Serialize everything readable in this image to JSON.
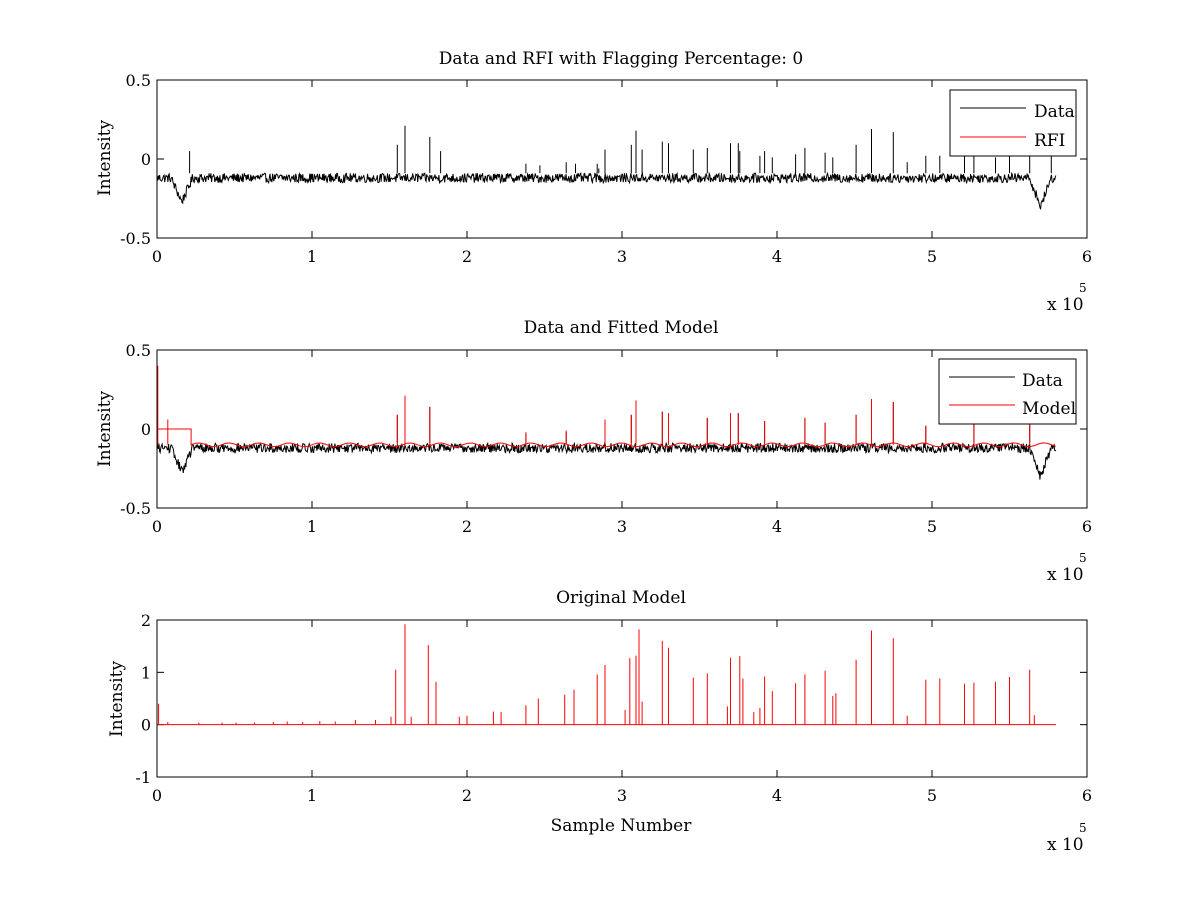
{
  "figure": {
    "background": "#ffffff",
    "axes_color": "#000000"
  },
  "chart_data": [
    {
      "type": "line",
      "title": "Data and RFI with Flagging Percentage: 0",
      "xlabel": "",
      "ylabel": "Intensity",
      "xlim": [
        0,
        600000
      ],
      "ylim": [
        -0.5,
        0.5
      ],
      "xticks": [
        "0",
        "1",
        "2",
        "3",
        "4",
        "5",
        "6"
      ],
      "yticks": [
        "-0.5",
        "0",
        "0.5"
      ],
      "x_multiplier": {
        "base": "x 10",
        "power": "5"
      },
      "grid": false,
      "legend": {
        "placement": "top-right",
        "entries": [
          "Data",
          "RFI"
        ]
      },
      "series": [
        {
          "name": "Data",
          "color": "#000000",
          "baseline": -0.12,
          "noise_amplitude": 0.03,
          "dips": [
            {
              "x": 16000,
              "y": -0.27
            },
            {
              "x": 570000,
              "y": -0.3
            }
          ],
          "spikes": [
            {
              "x": 21000,
              "y": 0.05
            },
            {
              "x": 155000,
              "y": 0.09
            },
            {
              "x": 160000,
              "y": 0.21
            },
            {
              "x": 176000,
              "y": 0.14
            },
            {
              "x": 183000,
              "y": 0.05
            },
            {
              "x": 238000,
              "y": -0.03
            },
            {
              "x": 247000,
              "y": -0.04
            },
            {
              "x": 264000,
              "y": -0.02
            },
            {
              "x": 270000,
              "y": -0.03
            },
            {
              "x": 284000,
              "y": -0.03
            },
            {
              "x": 285000,
              "y": -0.06
            },
            {
              "x": 289000,
              "y": 0.06
            },
            {
              "x": 306000,
              "y": 0.09
            },
            {
              "x": 309000,
              "y": 0.18
            },
            {
              "x": 313000,
              "y": 0.06
            },
            {
              "x": 326000,
              "y": 0.11
            },
            {
              "x": 330000,
              "y": 0.1
            },
            {
              "x": 346000,
              "y": 0.06
            },
            {
              "x": 355000,
              "y": 0.07
            },
            {
              "x": 370000,
              "y": 0.1
            },
            {
              "x": 375000,
              "y": 0.1
            },
            {
              "x": 376000,
              "y": 0.05
            },
            {
              "x": 389000,
              "y": 0.02
            },
            {
              "x": 392000,
              "y": 0.05
            },
            {
              "x": 397000,
              "y": 0.01
            },
            {
              "x": 412000,
              "y": 0.03
            },
            {
              "x": 418000,
              "y": 0.07
            },
            {
              "x": 431000,
              "y": 0.04
            },
            {
              "x": 436000,
              "y": 0.01
            },
            {
              "x": 451000,
              "y": 0.09
            },
            {
              "x": 461000,
              "y": 0.19
            },
            {
              "x": 475000,
              "y": 0.17
            },
            {
              "x": 484000,
              "y": -0.02
            },
            {
              "x": 496000,
              "y": 0.02
            },
            {
              "x": 505000,
              "y": 0.02
            },
            {
              "x": 521000,
              "y": 0.03
            },
            {
              "x": 527000,
              "y": 0.05
            },
            {
              "x": 541000,
              "y": 0.01
            },
            {
              "x": 550000,
              "y": 0.02
            },
            {
              "x": 563000,
              "y": 0.05
            },
            {
              "x": 577000,
              "y": 0.02
            }
          ]
        },
        {
          "name": "RFI",
          "color": "#ff0000",
          "values": []
        }
      ]
    },
    {
      "type": "line",
      "title": "Data and Fitted Model",
      "xlabel": "",
      "ylabel": "Intensity",
      "xlim": [
        0,
        600000
      ],
      "ylim": [
        -0.5,
        0.5
      ],
      "xticks": [
        "0",
        "1",
        "2",
        "3",
        "4",
        "5",
        "6"
      ],
      "yticks": [
        "-0.5",
        "0",
        "0.5"
      ],
      "x_multiplier": {
        "base": "x 10",
        "power": "5"
      },
      "grid": false,
      "legend": {
        "placement": "top-right",
        "entries": [
          "Data",
          "Model"
        ]
      },
      "series": [
        {
          "name": "Data",
          "color": "#000000",
          "baseline": -0.12,
          "noise_amplitude": 0.03,
          "dips": [
            {
              "x": 16000,
              "y": -0.27
            },
            {
              "x": 570000,
              "y": -0.3
            }
          ],
          "spikes": [
            {
              "x": 155000,
              "y": 0.09
            },
            {
              "x": 160000,
              "y": 0.21
            },
            {
              "x": 176000,
              "y": 0.14
            },
            {
              "x": 238000,
              "y": -0.03
            },
            {
              "x": 264000,
              "y": -0.02
            },
            {
              "x": 289000,
              "y": 0.06
            },
            {
              "x": 306000,
              "y": 0.09
            },
            {
              "x": 309000,
              "y": 0.18
            },
            {
              "x": 326000,
              "y": 0.11
            },
            {
              "x": 330000,
              "y": 0.1
            },
            {
              "x": 355000,
              "y": 0.07
            },
            {
              "x": 370000,
              "y": 0.1
            },
            {
              "x": 375000,
              "y": 0.1
            },
            {
              "x": 392000,
              "y": 0.05
            },
            {
              "x": 418000,
              "y": 0.07
            },
            {
              "x": 431000,
              "y": 0.04
            },
            {
              "x": 451000,
              "y": 0.09
            },
            {
              "x": 461000,
              "y": 0.19
            },
            {
              "x": 475000,
              "y": 0.17
            },
            {
              "x": 496000,
              "y": 0.02
            },
            {
              "x": 527000,
              "y": 0.05
            },
            {
              "x": 563000,
              "y": 0.05
            }
          ]
        },
        {
          "name": "Model",
          "color": "#ff0000",
          "baseline": -0.1,
          "initial_plateau": {
            "x_start": 0,
            "x_end": 22000,
            "y": 0.0
          },
          "spikes": [
            {
              "x": 500,
              "y": 0.4
            },
            {
              "x": 7000,
              "y": 0.06
            },
            {
              "x": 155000,
              "y": 0.09
            },
            {
              "x": 160000,
              "y": 0.21
            },
            {
              "x": 176000,
              "y": 0.14
            },
            {
              "x": 238000,
              "y": -0.02
            },
            {
              "x": 264000,
              "y": -0.01
            },
            {
              "x": 289000,
              "y": 0.06
            },
            {
              "x": 306000,
              "y": 0.09
            },
            {
              "x": 309000,
              "y": 0.18
            },
            {
              "x": 326000,
              "y": 0.11
            },
            {
              "x": 330000,
              "y": 0.1
            },
            {
              "x": 355000,
              "y": 0.07
            },
            {
              "x": 370000,
              "y": 0.1
            },
            {
              "x": 375000,
              "y": 0.1
            },
            {
              "x": 392000,
              "y": 0.05
            },
            {
              "x": 418000,
              "y": 0.07
            },
            {
              "x": 431000,
              "y": 0.04
            },
            {
              "x": 451000,
              "y": 0.09
            },
            {
              "x": 461000,
              "y": 0.19
            },
            {
              "x": 475000,
              "y": 0.17
            },
            {
              "x": 496000,
              "y": 0.02
            },
            {
              "x": 527000,
              "y": 0.05
            },
            {
              "x": 563000,
              "y": 0.05
            }
          ]
        }
      ]
    },
    {
      "type": "line",
      "title": "Original Model",
      "xlabel": "Sample Number",
      "ylabel": "Intensity",
      "xlim": [
        0,
        600000
      ],
      "ylim": [
        -1,
        2
      ],
      "xticks": [
        "0",
        "1",
        "2",
        "3",
        "4",
        "5",
        "6"
      ],
      "yticks": [
        "-1",
        "0",
        "1",
        "2"
      ],
      "x_multiplier": {
        "base": "x 10",
        "power": "5"
      },
      "grid": false,
      "legend": null,
      "series": [
        {
          "name": "Original Model",
          "color": "#ff0000",
          "baseline": 0.0,
          "x_end": 580000,
          "spikes": [
            {
              "x": 1000,
              "y": 0.4
            },
            {
              "x": 7000,
              "y": 0.05
            },
            {
              "x": 27000,
              "y": 0.04
            },
            {
              "x": 42000,
              "y": 0.04
            },
            {
              "x": 51000,
              "y": 0.04
            },
            {
              "x": 63000,
              "y": 0.04
            },
            {
              "x": 75000,
              "y": 0.05
            },
            {
              "x": 84000,
              "y": 0.06
            },
            {
              "x": 94000,
              "y": 0.05
            },
            {
              "x": 105000,
              "y": 0.07
            },
            {
              "x": 115000,
              "y": 0.06
            },
            {
              "x": 128000,
              "y": 0.09
            },
            {
              "x": 141000,
              "y": 0.09
            },
            {
              "x": 151000,
              "y": 0.15
            },
            {
              "x": 154000,
              "y": 1.05
            },
            {
              "x": 160000,
              "y": 1.92
            },
            {
              "x": 164000,
              "y": 0.15
            },
            {
              "x": 175000,
              "y": 1.52
            },
            {
              "x": 180000,
              "y": 0.82
            },
            {
              "x": 195000,
              "y": 0.15
            },
            {
              "x": 200000,
              "y": 0.17
            },
            {
              "x": 217000,
              "y": 0.25
            },
            {
              "x": 222000,
              "y": 0.24
            },
            {
              "x": 238000,
              "y": 0.37
            },
            {
              "x": 246000,
              "y": 0.5
            },
            {
              "x": 263000,
              "y": 0.57
            },
            {
              "x": 269000,
              "y": 0.67
            },
            {
              "x": 284000,
              "y": 0.96
            },
            {
              "x": 289000,
              "y": 1.14
            },
            {
              "x": 302000,
              "y": 0.28
            },
            {
              "x": 305000,
              "y": 1.27
            },
            {
              "x": 309000,
              "y": 1.32
            },
            {
              "x": 311000,
              "y": 1.82
            },
            {
              "x": 313000,
              "y": 0.44
            },
            {
              "x": 326000,
              "y": 1.6
            },
            {
              "x": 330000,
              "y": 1.47
            },
            {
              "x": 346000,
              "y": 0.9
            },
            {
              "x": 355000,
              "y": 0.98
            },
            {
              "x": 368000,
              "y": 0.35
            },
            {
              "x": 370000,
              "y": 1.28
            },
            {
              "x": 376000,
              "y": 1.31
            },
            {
              "x": 378000,
              "y": 0.88
            },
            {
              "x": 385000,
              "y": 0.24
            },
            {
              "x": 389000,
              "y": 0.32
            },
            {
              "x": 392000,
              "y": 0.92
            },
            {
              "x": 397000,
              "y": 0.64
            },
            {
              "x": 412000,
              "y": 0.79
            },
            {
              "x": 418000,
              "y": 0.96
            },
            {
              "x": 431000,
              "y": 1.03
            },
            {
              "x": 436000,
              "y": 0.55
            },
            {
              "x": 438000,
              "y": 0.6
            },
            {
              "x": 451000,
              "y": 1.24
            },
            {
              "x": 461000,
              "y": 1.8
            },
            {
              "x": 475000,
              "y": 1.65
            },
            {
              "x": 484000,
              "y": 0.17
            },
            {
              "x": 496000,
              "y": 0.86
            },
            {
              "x": 505000,
              "y": 0.88
            },
            {
              "x": 521000,
              "y": 0.78
            },
            {
              "x": 527000,
              "y": 0.8
            },
            {
              "x": 541000,
              "y": 0.82
            },
            {
              "x": 550000,
              "y": 0.91
            },
            {
              "x": 563000,
              "y": 1.05
            },
            {
              "x": 566000,
              "y": 0.18
            }
          ]
        }
      ]
    }
  ]
}
